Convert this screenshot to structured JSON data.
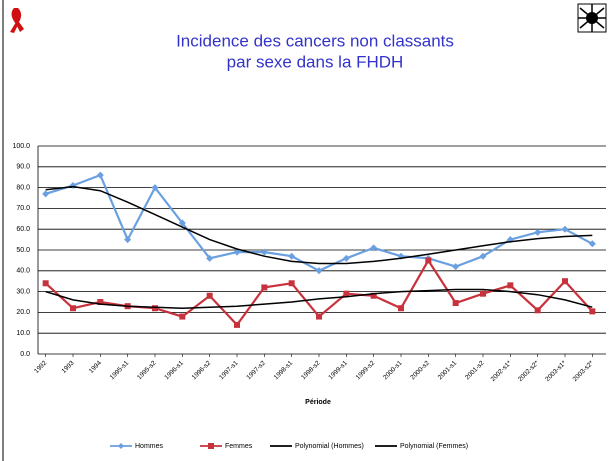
{
  "chart_data": {
    "type": "line",
    "title": [
      "Incidence des cancers non classants",
      "par sexe dans la FHDH"
    ],
    "x_label": "Période",
    "categories": [
      "1992",
      "1993",
      "1994",
      "1995-s1",
      "1995-s2",
      "1996-s1",
      "1996-s2",
      "1997-s1",
      "1997-s2",
      "1998-s1",
      "1998-s2",
      "1999-s1",
      "1999-s2",
      "2000-s1",
      "2000-s2",
      "2001-s1",
      "2001-s2",
      "2002-s1*",
      "2002-s2*",
      "2003-s1*",
      "2003-s2*"
    ],
    "series": [
      {
        "name": "Hommes",
        "color": "#6a9fe0",
        "marker": "diamond",
        "values": [
          77,
          81,
          86,
          55,
          80,
          63,
          46,
          49,
          49,
          47,
          40,
          46,
          51,
          47,
          46,
          42,
          47,
          55,
          58.5,
          60,
          53
        ]
      },
      {
        "name": "Femmes",
        "color": "#c8323c",
        "marker": "square",
        "values": [
          34,
          22,
          25,
          23,
          22,
          18,
          28,
          14,
          32,
          34,
          18,
          29,
          28,
          22,
          45,
          24.5,
          29,
          33,
          21,
          35,
          20.5
        ]
      },
      {
        "name": "Polynomial (Hommes)",
        "color": "#000000",
        "marker": "none",
        "values": [
          79,
          80.5,
          78.5,
          73,
          67,
          61,
          55,
          50.5,
          47,
          44.5,
          43.5,
          43.5,
          44.5,
          46,
          48,
          50,
          52,
          54,
          55.5,
          56.5,
          57
        ]
      },
      {
        "name": "Polynomial (Femmes)",
        "color": "#000000",
        "marker": "none",
        "values": [
          30,
          26,
          24,
          23,
          22.5,
          22,
          22.5,
          23,
          24,
          25,
          26.5,
          27.5,
          29,
          30,
          30.5,
          31,
          31,
          30,
          28.5,
          26,
          22.5
        ]
      }
    ],
    "ylim": [
      0,
      100
    ],
    "yticks": [
      {
        "value": 0,
        "label": "0.0"
      },
      {
        "value": 10,
        "label": "10.0"
      },
      {
        "value": 20,
        "label": "20.0"
      },
      {
        "value": 30,
        "label": "30.0"
      },
      {
        "value": 40,
        "label": "40.0"
      },
      {
        "value": 50,
        "label": "50.0"
      },
      {
        "value": 60,
        "label": "60.0"
      },
      {
        "value": 70,
        "label": "70.0"
      },
      {
        "value": 80,
        "label": "80.0"
      },
      {
        "value": 90,
        "label": "90.0"
      },
      {
        "value": 100,
        "label": "100.0"
      }
    ],
    "grid": true,
    "legend": "bottom"
  }
}
